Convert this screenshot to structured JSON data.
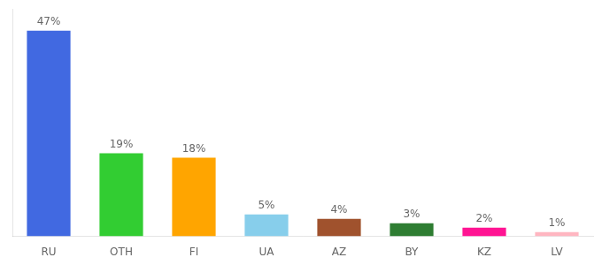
{
  "chart_data": {
    "type": "bar",
    "categories": [
      "RU",
      "OTH",
      "FI",
      "UA",
      "AZ",
      "BY",
      "KZ",
      "LV"
    ],
    "values": [
      47,
      19,
      18,
      5,
      4,
      3,
      2,
      1
    ],
    "value_labels": [
      "47%",
      "19%",
      "18%",
      "5%",
      "4%",
      "3%",
      "2%",
      "1%"
    ],
    "colors": [
      "#4169e1",
      "#32cd32",
      "#ffa500",
      "#87ceeb",
      "#a0522d",
      "#2e7d32",
      "#ff1493",
      "#ffb6c1"
    ],
    "ylim": [
      0,
      52
    ],
    "grid": false,
    "data_labels": true,
    "tick_labels": "x"
  }
}
